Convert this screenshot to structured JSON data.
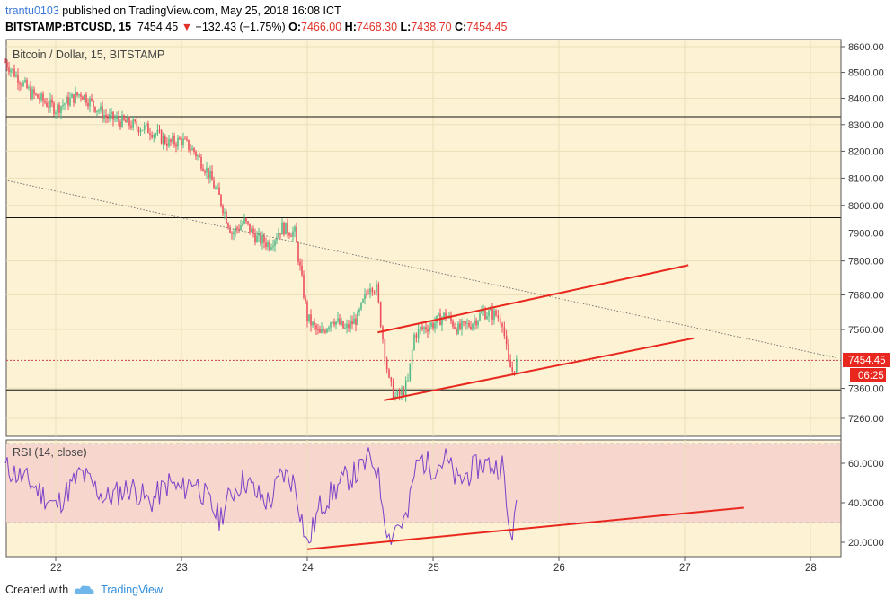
{
  "header": {
    "line1": {
      "author": "trantu0103",
      "published": "published on TradingView.com, May 25, 2018 16:08 ICT"
    },
    "line2": {
      "symbol": "BITSTAMP:BTCUSD, 15",
      "last": "7454.45",
      "change": "−132.43 (−1.75%)",
      "o_label": "O:",
      "o": "7466.00",
      "h_label": "H:",
      "h": "7468.30",
      "l_label": "L:",
      "l": "7438.70",
      "c_label": "C:",
      "c": "7454.45"
    }
  },
  "footer": {
    "created": "Created with",
    "brand": "TradingView"
  },
  "chart_data": [
    {
      "type": "candlestick",
      "title": "Bitcoin / Dollar, 15, BITSTAMP",
      "yticks": [
        "8600.00",
        "8500.00",
        "8400.00",
        "8300.00",
        "8200.00",
        "8100.00",
        "8000.00",
        "7900.00",
        "7800.00",
        "7680.00",
        "7560.00",
        "7360.00",
        "7260.00"
      ],
      "y_axis_scale": "log",
      "xticks": [
        "22",
        "23",
        "24",
        "25",
        "26",
        "27",
        "28"
      ],
      "price_label": "7454.45",
      "countdown_label": "06:25",
      "price_path": [
        [
          21.6,
          8540
        ],
        [
          21.8,
          8420
        ],
        [
          22.0,
          8360
        ],
        [
          22.2,
          8420
        ],
        [
          22.4,
          8330
        ],
        [
          22.6,
          8300
        ],
        [
          22.75,
          8280
        ],
        [
          22.9,
          8230
        ],
        [
          23.0,
          8240
        ],
        [
          23.1,
          8200
        ],
        [
          23.2,
          8130
        ],
        [
          23.3,
          8030
        ],
        [
          23.4,
          7900
        ],
        [
          23.5,
          7940
        ],
        [
          23.6,
          7880
        ],
        [
          23.7,
          7860
        ],
        [
          23.8,
          7920
        ],
        [
          23.9,
          7900
        ],
        [
          24.0,
          7600
        ],
        [
          24.1,
          7540
        ],
        [
          24.2,
          7600
        ],
        [
          24.3,
          7560
        ],
        [
          24.4,
          7600
        ],
        [
          24.5,
          7720
        ],
        [
          24.55,
          7700
        ],
        [
          24.6,
          7530
        ],
        [
          24.65,
          7380
        ],
        [
          24.7,
          7330
        ],
        [
          24.75,
          7340
        ],
        [
          24.8,
          7380
        ],
        [
          24.85,
          7540
        ],
        [
          24.9,
          7560
        ],
        [
          25.0,
          7580
        ],
        [
          25.1,
          7610
        ],
        [
          25.2,
          7560
        ],
        [
          25.3,
          7580
        ],
        [
          25.4,
          7620
        ],
        [
          25.5,
          7610
        ],
        [
          25.55,
          7590
        ],
        [
          25.6,
          7440
        ],
        [
          25.63,
          7420
        ],
        [
          25.68,
          7460
        ]
      ],
      "horizontal_levels": [
        8330,
        7955,
        7355
      ],
      "trendlines": [
        {
          "style": "dotted",
          "from": [
            21.62,
            8090
          ],
          "to": [
            28.22,
            7462
          ]
        },
        {
          "style": "solid",
          "color": "#e8281e",
          "from": [
            24.56,
            7550
          ],
          "to": [
            27.03,
            7785
          ]
        },
        {
          "style": "solid",
          "color": "#e8281e",
          "from": [
            24.61,
            7320
          ],
          "to": [
            27.07,
            7530
          ]
        }
      ],
      "horizontal_line": {
        "style": "dotted",
        "color": "#c44",
        "y": 7454.45
      }
    },
    {
      "type": "line",
      "title": "RSI (14, close)",
      "yticks": [
        "60.0000",
        "40.0000",
        "20.0000"
      ],
      "band": [
        30,
        70
      ],
      "series": [
        {
          "values": [
            [
              21.6,
              58
            ],
            [
              21.8,
              50
            ],
            [
              22.0,
              38
            ],
            [
              22.2,
              55
            ],
            [
              22.4,
              42
            ],
            [
              22.6,
              48
            ],
            [
              22.75,
              40
            ],
            [
              22.9,
              50
            ],
            [
              23.0,
              46
            ],
            [
              23.1,
              52
            ],
            [
              23.2,
              42
            ],
            [
              23.3,
              32
            ],
            [
              23.4,
              45
            ],
            [
              23.5,
              52
            ],
            [
              23.6,
              44
            ],
            [
              23.7,
              40
            ],
            [
              23.8,
              55
            ],
            [
              23.9,
              50
            ],
            [
              24.0,
              18
            ],
            [
              24.1,
              38
            ],
            [
              24.2,
              45
            ],
            [
              24.3,
              52
            ],
            [
              24.4,
              55
            ],
            [
              24.5,
              63
            ],
            [
              24.55,
              58
            ],
            [
              24.6,
              40
            ],
            [
              24.65,
              22
            ],
            [
              24.7,
              28
            ],
            [
              24.75,
              30
            ],
            [
              24.8,
              33
            ],
            [
              24.85,
              55
            ],
            [
              24.9,
              62
            ],
            [
              25.0,
              58
            ],
            [
              25.1,
              62
            ],
            [
              25.2,
              50
            ],
            [
              25.3,
              56
            ],
            [
              25.4,
              60
            ],
            [
              25.5,
              58
            ],
            [
              25.55,
              60
            ],
            [
              25.6,
              27
            ],
            [
              25.63,
              26
            ],
            [
              25.68,
              40
            ]
          ]
        }
      ],
      "trendlines": [
        {
          "style": "solid",
          "color": "#e8281e",
          "from": [
            24.0,
            16.5
          ],
          "to": [
            27.47,
            37.5
          ]
        }
      ]
    }
  ]
}
